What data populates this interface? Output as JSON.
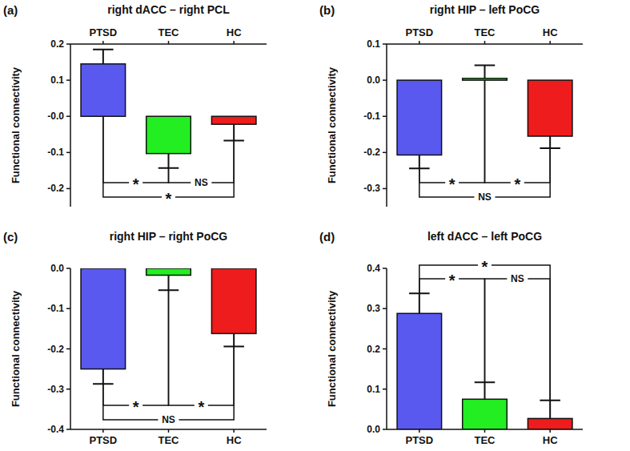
{
  "chart_data": [
    {
      "type": "bar",
      "subtitle": "(a)",
      "title": "right dACC – right PCL",
      "y_label": "Functional connectivity",
      "categories": [
        "PTSD",
        "TEC",
        "HC"
      ],
      "values": [
        0.145,
        -0.103,
        -0.022
      ],
      "errors": [
        0.04,
        0.04,
        0.045
      ],
      "colors": [
        "#5959f0",
        "#22ee22",
        "#ee1c1c"
      ],
      "ylim": [
        -0.25,
        0.2
      ],
      "yticks": [
        -0.2,
        -0.1,
        {
          "value": 0,
          "label": "-0.0"
        },
        0.1,
        0.2
      ],
      "annotations": [
        {
          "text": "*",
          "between": [
            "PTSD",
            "TEC"
          ]
        },
        {
          "text": "NS",
          "between": [
            "TEC",
            "HC"
          ]
        },
        {
          "text": "*",
          "between": [
            "PTSD",
            "HC"
          ]
        }
      ]
    },
    {
      "type": "bar",
      "subtitle": "(b)",
      "title": "right HIP – left PoCG",
      "y_label": "Functional connectivity",
      "categories": [
        "PTSD",
        "TEC",
        "HC"
      ],
      "values": [
        -0.207,
        0.005,
        -0.155
      ],
      "errors": [
        0.037,
        0.036,
        0.033
      ],
      "colors": [
        "#5959f0",
        "#22ee22",
        "#ee1c1c"
      ],
      "ylim": [
        -0.35,
        0.1
      ],
      "yticks": [
        -0.3,
        -0.2,
        -0.1,
        {
          "value": 0,
          "label": "0.0"
        },
        0.1
      ],
      "annotations": [
        {
          "text": "*",
          "between": [
            "PTSD",
            "TEC"
          ]
        },
        {
          "text": "*",
          "between": [
            "TEC",
            "HC"
          ]
        },
        {
          "text": "NS",
          "between": [
            "PTSD",
            "HC"
          ]
        }
      ]
    },
    {
      "type": "bar",
      "subtitle": "(c)",
      "title": "right HIP – right PoCG",
      "y_label": "Functional connectivity",
      "categories": [
        "PTSD",
        "TEC",
        "HC"
      ],
      "values": [
        -0.25,
        -0.017,
        -0.162
      ],
      "errors": [
        0.037,
        0.037,
        0.032
      ],
      "colors": [
        "#5959f0",
        "#22ee22",
        "#ee1c1c"
      ],
      "ylim": [
        -0.4,
        0
      ],
      "yticks": [
        -0.4,
        -0.3,
        -0.2,
        -0.1,
        {
          "value": 0,
          "label": "0.0"
        }
      ],
      "annotations": [
        {
          "text": "*",
          "between": [
            "PTSD",
            "TEC"
          ]
        },
        {
          "text": "*",
          "between": [
            "TEC",
            "HC"
          ]
        },
        {
          "text": "NS",
          "between": [
            "PTSD",
            "HC"
          ]
        }
      ]
    },
    {
      "type": "bar",
      "subtitle": "(d)",
      "title": "left dACC – left PoCG",
      "y_label": "Functional connectivity",
      "categories": [
        "PTSD",
        "TEC",
        "HC"
      ],
      "values": [
        0.288,
        0.075,
        0.027
      ],
      "errors": [
        0.05,
        0.042,
        0.045
      ],
      "colors": [
        "#5959f0",
        "#22ee22",
        "#ee1c1c"
      ],
      "ylim": [
        0,
        0.4
      ],
      "yticks": [
        {
          "value": 0,
          "label": "0.0"
        },
        0.1,
        0.2,
        0.3,
        0.4
      ],
      "annotations": [
        {
          "text": "*",
          "between": [
            "PTSD",
            "TEC"
          ]
        },
        {
          "text": "NS",
          "between": [
            "TEC",
            "HC"
          ]
        },
        {
          "text": "*",
          "between": [
            "PTSD",
            "HC"
          ]
        }
      ]
    }
  ]
}
